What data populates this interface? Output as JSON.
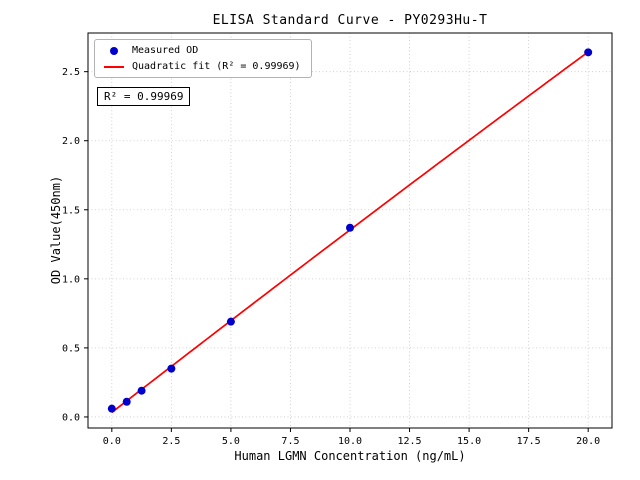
{
  "chart_data": {
    "type": "scatter",
    "title": "ELISA Standard Curve - PY0293Hu-T",
    "xlabel": "Human LGMN Concentration (ng/mL)",
    "ylabel": "OD Value(450nm)",
    "xlim": [
      -1,
      21
    ],
    "ylim": [
      -0.08,
      2.78
    ],
    "xticks": [
      0.0,
      2.5,
      5.0,
      7.5,
      10.0,
      12.5,
      15.0,
      17.5,
      20.0
    ],
    "xtick_labels": [
      "0.0",
      "2.5",
      "5.0",
      "7.5",
      "10.0",
      "12.5",
      "15.0",
      "17.5",
      "20.0"
    ],
    "yticks": [
      0.0,
      0.5,
      1.0,
      1.5,
      2.0,
      2.5
    ],
    "ytick_labels": [
      "0.0",
      "0.5",
      "1.0",
      "1.5",
      "2.0",
      "2.5"
    ],
    "grid": true,
    "grid_style": "dotted",
    "legend_position": "upper-left",
    "series": [
      {
        "name": "Measured OD",
        "type": "scatter",
        "color": "#0000cd",
        "x": [
          0,
          0.625,
          1.25,
          2.5,
          5,
          10,
          20
        ],
        "y": [
          0.06,
          0.11,
          0.19,
          0.35,
          0.69,
          1.37,
          2.64
        ]
      },
      {
        "name": "Quadratic fit (R² = 0.99969)",
        "type": "line",
        "color": "#ff0000",
        "fit": {
          "a": -0.000164,
          "b": 0.1338,
          "c": 0.0328
        },
        "x_range": [
          0,
          20
        ]
      }
    ],
    "annotation": "R² = 0.99969"
  }
}
